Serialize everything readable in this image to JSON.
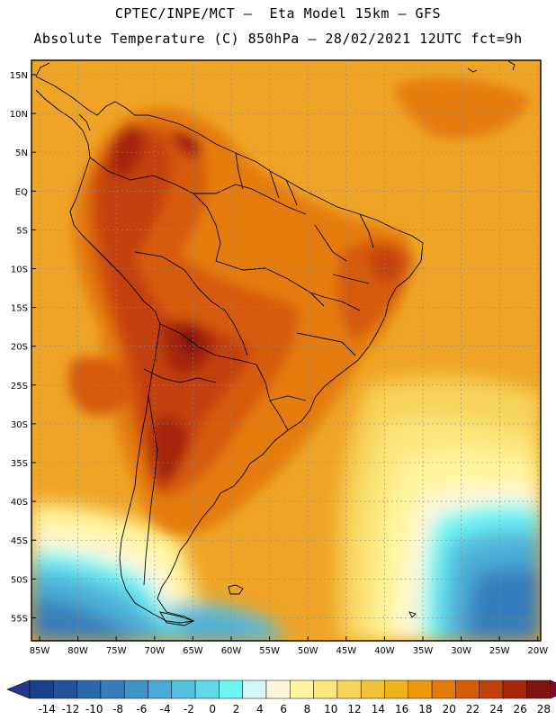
{
  "header": {
    "line1": "CPTEC/INPE/MCT –  Eta Model 15km – GFS",
    "line2": "Absolute Temperature (C) 850hPa – 28/02/2021 12UTC fct=9h"
  },
  "axes": {
    "lat_labels": [
      "15N",
      "10N",
      "5N",
      "EQ",
      "5S",
      "10S",
      "15S",
      "20S",
      "25S",
      "30S",
      "35S",
      "40S",
      "45S",
      "50S",
      "55S"
    ],
    "lon_labels": [
      "85W",
      "80W",
      "75W",
      "70W",
      "65W",
      "60W",
      "55W",
      "50W",
      "45W",
      "40W",
      "35W",
      "30W",
      "25W",
      "20W"
    ]
  },
  "colorbar": {
    "labels": [
      "-14",
      "-12",
      "-10",
      "-8",
      "-6",
      "-4",
      "-2",
      "0",
      "2",
      "4",
      "6",
      "8",
      "10",
      "12",
      "14",
      "16",
      "18",
      "20",
      "22",
      "24",
      "26",
      "28"
    ],
    "colors": [
      "#1a3f8a",
      "#23529c",
      "#2b67ad",
      "#357ebd",
      "#3f94c9",
      "#4aa9d5",
      "#56c0e0",
      "#63d8ec",
      "#6ff5f5",
      "#d2f7f7",
      "#fff6d8",
      "#fff59e",
      "#fbe57d",
      "#f7d45c",
      "#f2c23a",
      "#efb11c",
      "#eb9a10",
      "#e47c0c",
      "#d65c0a",
      "#c2410a",
      "#a6280c",
      "#7e1511"
    ],
    "under_color": "#25378a",
    "over_color": "#7b0b2a"
  },
  "map": {
    "background_color": "#efa426",
    "land_warm_colors": [
      "#e47c0c",
      "#d65c0a",
      "#c2410a",
      "#a6280c",
      "#7e1511"
    ],
    "ocean_cool_colors": [
      "#fff59e",
      "#fff6d8",
      "#d2f7f7",
      "#6ff5f5",
      "#56c0e0",
      "#4aa9d5",
      "#357ebd"
    ]
  }
}
